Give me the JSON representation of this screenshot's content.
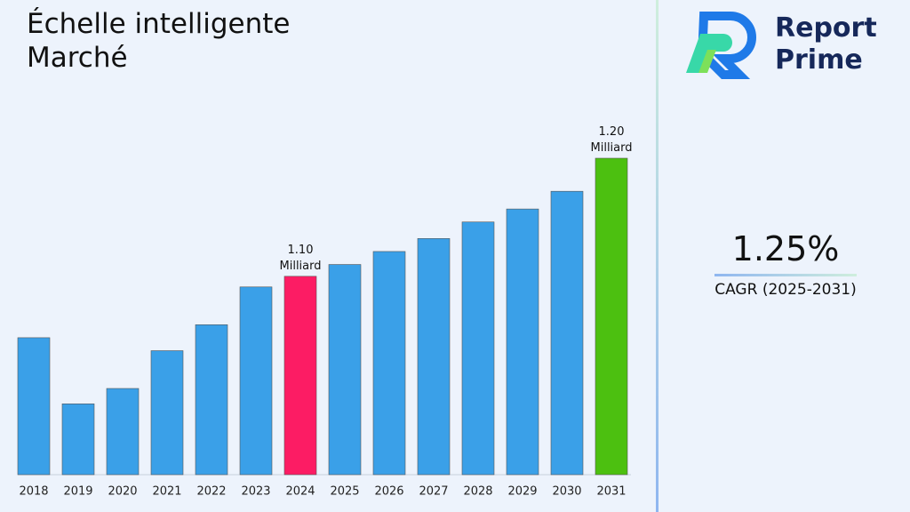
{
  "title": "Échelle intelligente Marché",
  "logo": {
    "text": "Report Prime"
  },
  "cagr": {
    "value": "1.25%",
    "label": "CAGR (2025-2031)"
  },
  "chart_data": {
    "type": "bar",
    "categories": [
      "2018",
      "2019",
      "2020",
      "2021",
      "2022",
      "2023",
      "2024",
      "2025",
      "2026",
      "2027",
      "2028",
      "2029",
      "2030",
      "2031"
    ],
    "values": [
      1.048,
      0.992,
      1.005,
      1.037,
      1.059,
      1.091,
      1.1,
      1.11,
      1.121,
      1.132,
      1.146,
      1.157,
      1.172,
      1.2
    ],
    "value_labels": [
      null,
      null,
      null,
      null,
      null,
      null,
      "1.10 Milliard",
      null,
      null,
      null,
      null,
      null,
      null,
      "1.20 Milliard"
    ],
    "colors": [
      "#3aa0e8",
      "#3aa0e8",
      "#3aa0e8",
      "#3aa0e8",
      "#3aa0e8",
      "#3aa0e8",
      "#fc1c64",
      "#3aa0e8",
      "#3aa0e8",
      "#3aa0e8",
      "#3aa0e8",
      "#3aa0e8",
      "#3aa0e8",
      "#4cc010"
    ],
    "ylim": [
      0.932,
      1.2
    ]
  }
}
